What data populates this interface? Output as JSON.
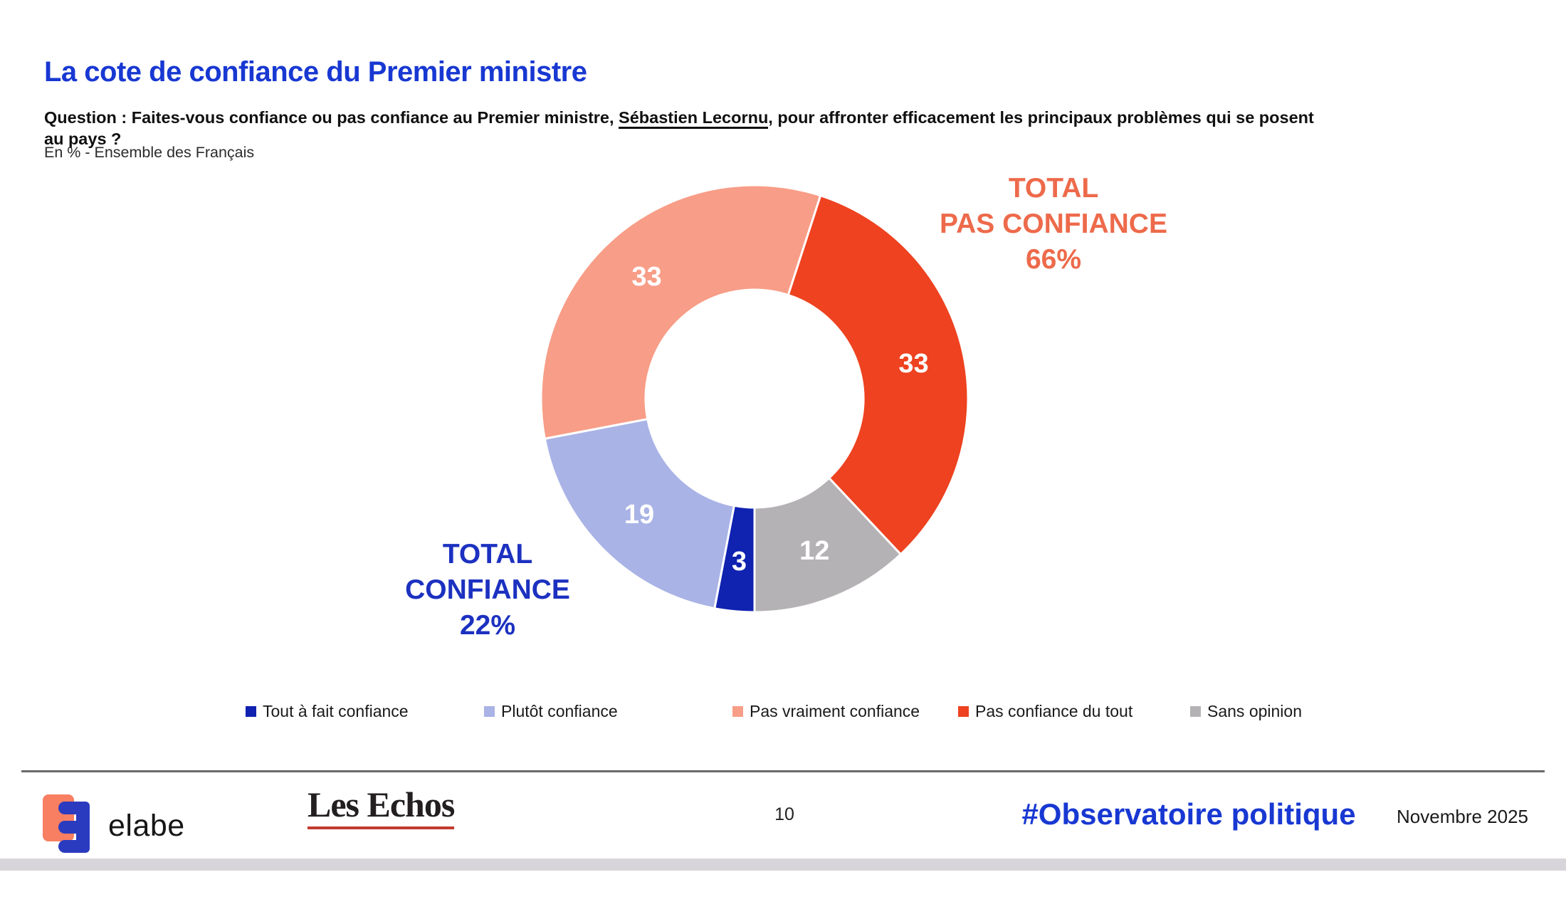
{
  "header": {
    "title": "La cote de confiance du Premier ministre",
    "question_prefix": "Question : Faites-vous confiance ou pas confiance au Premier ministre, ",
    "question_person": "Sébastien Lecornu",
    "question_suffix": ", pour affronter efficacement les principaux problèmes qui se posent au pays ?",
    "subtitle": "En % - Ensemble des Français"
  },
  "colors": {
    "accent_blue": "#1838d2",
    "separator_gray": "#6a6a6a",
    "bottom_bar_gray": "#d7d5d9"
  },
  "chart_data": {
    "type": "pie",
    "subtype": "donut",
    "title": "La cote de confiance du Premier ministre",
    "unit": "%",
    "start_angle_clockwise_from_top": 180,
    "direction": "clockwise",
    "categories": [
      "Tout à fait confiance",
      "Plutôt confiance",
      "Pas vraiment confiance",
      "Pas confiance du tout",
      "Sans opinion"
    ],
    "values": [
      3,
      19,
      33,
      33,
      12
    ],
    "colors": [
      "#1022b0",
      "#a9b3e6",
      "#f89d87",
      "#ee4220",
      "#b5b2b5"
    ],
    "value_label_color": "#ffffff",
    "legend_position": "bottom",
    "annotations": {
      "total_pas_confiance": {
        "line1": "TOTAL",
        "line2": "PAS CONFIANCE",
        "value": "66%",
        "color": "#ed6a4b"
      },
      "total_confiance": {
        "line1": "TOTAL",
        "line2": "CONFIANCE",
        "value": "22%",
        "color": "#1c31c0"
      }
    }
  },
  "footer": {
    "brand": "elabe",
    "publication": "Les Echos",
    "page_number": "10",
    "hashtag": "#Observatoire politique",
    "date": "Novembre 2025"
  }
}
